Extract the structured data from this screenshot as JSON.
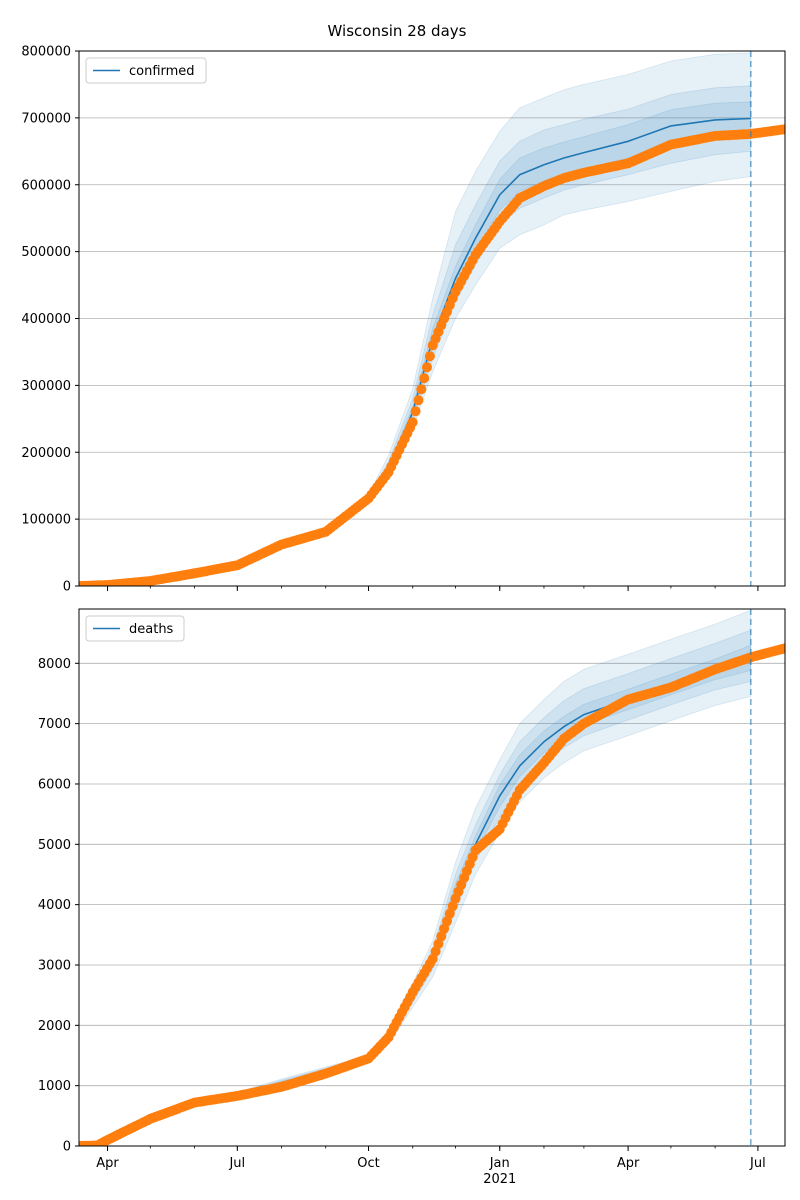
{
  "title": "Wisconsin 28 days",
  "colors": {
    "model_line": "#1f77b4",
    "observed": "#ff7f0e",
    "band": "#1f77b4",
    "grid": "#b0b0b0",
    "forecast_marker": "#1f77b4"
  },
  "x_axis": {
    "range": [
      "2020-03-12",
      "2021-07-20"
    ],
    "ticks": [
      {
        "date": "2020-04-01",
        "label": "Apr",
        "sub": ""
      },
      {
        "date": "2020-07-01",
        "label": "Jul",
        "sub": ""
      },
      {
        "date": "2020-10-01",
        "label": "Oct",
        "sub": ""
      },
      {
        "date": "2021-01-01",
        "label": "Jan",
        "sub": "2021"
      },
      {
        "date": "2021-04-01",
        "label": "Apr",
        "sub": ""
      },
      {
        "date": "2021-07-01",
        "label": "Jul",
        "sub": ""
      }
    ],
    "forecast_date": "2021-06-26"
  },
  "chart_data": [
    {
      "type": "line",
      "legend": "confirmed",
      "legend_position": "upper-left",
      "grid": true,
      "ylim": [
        0,
        800000
      ],
      "yticks": [
        "0",
        "100000",
        "200000",
        "300000",
        "400000",
        "500000",
        "600000",
        "700000",
        "800000"
      ],
      "model": {
        "x": [
          "2020-03-12",
          "2020-04-01",
          "2020-05-01",
          "2020-06-01",
          "2020-07-01",
          "2020-08-01",
          "2020-09-01",
          "2020-10-01",
          "2020-10-15",
          "2020-11-01",
          "2020-11-15",
          "2020-12-01",
          "2020-12-15",
          "2021-01-01",
          "2021-01-15",
          "2021-02-01",
          "2021-02-15",
          "2021-03-01",
          "2021-04-01",
          "2021-05-01",
          "2021-06-01",
          "2021-06-26"
        ],
        "y": [
          0,
          1500,
          8000,
          20000,
          32000,
          63000,
          82000,
          130000,
          175000,
          260000,
          370000,
          460000,
          520000,
          585000,
          615000,
          630000,
          640000,
          648000,
          665000,
          688000,
          697000,
          699000
        ],
        "bands": [
          {
            "lo": [
              0,
              1400,
              7500,
              19000,
              30000,
              60000,
              78000,
              123000,
              160000,
              235000,
              320000,
              400000,
              450000,
              505000,
              525000,
              540000,
              555000,
              562000,
              575000,
              590000,
              605000,
              612000
            ],
            "hi": [
              0,
              1600,
              8500,
              21000,
              34000,
              66000,
              86000,
              137000,
              195000,
              295000,
              430000,
              560000,
              620000,
              680000,
              715000,
              730000,
              742000,
              750000,
              765000,
              785000,
              795000,
              797000
            ]
          },
          {
            "lo": [
              0,
              1450,
              7700,
              19500,
              31000,
              61500,
              80000,
              126000,
              166000,
              245000,
              340000,
              425000,
              480000,
              540000,
              565000,
              580000,
              592000,
              600000,
              615000,
              632000,
              645000,
              650000
            ],
            "hi": [
              0,
              1550,
              8300,
              20500,
              33000,
              64500,
              84000,
              134000,
              186000,
              280000,
              405000,
              510000,
              570000,
              635000,
              665000,
              682000,
              690000,
              698000,
              713000,
              735000,
              745000,
              748000
            ]
          },
          {
            "lo": [
              0,
              1480,
              7850,
              19800,
              31500,
              62200,
              81000,
              128000,
              170000,
              252000,
              355000,
              442000,
              500000,
              562000,
              590000,
              606000,
              616000,
              624000,
              640000,
              660000,
              672000,
              674000
            ],
            "hi": [
              0,
              1520,
              8150,
              20200,
              32500,
              63800,
              83000,
              132000,
              180000,
              268000,
              385000,
              478000,
              540000,
              608000,
              640000,
              655000,
              664000,
              672000,
              690000,
              712000,
              722000,
              724000
            ]
          }
        ]
      },
      "observed": {
        "x": [
          "2020-03-12",
          "2020-04-01",
          "2020-05-01",
          "2020-06-01",
          "2020-07-01",
          "2020-08-01",
          "2020-09-01",
          "2020-10-01",
          "2020-10-15",
          "2020-11-01",
          "2020-11-15",
          "2020-12-01",
          "2020-12-15",
          "2021-01-01",
          "2021-01-15",
          "2021-02-01",
          "2021-02-15",
          "2021-03-01",
          "2021-04-01",
          "2021-05-01",
          "2021-06-01",
          "2021-06-26",
          "2021-07-20"
        ],
        "y": [
          0,
          1500,
          7500,
          19000,
          31000,
          62000,
          81000,
          131000,
          170000,
          245000,
          360000,
          440000,
          495000,
          545000,
          580000,
          598000,
          610000,
          618000,
          632000,
          660000,
          673000,
          676000,
          683000
        ]
      }
    },
    {
      "type": "line",
      "legend": "deaths",
      "legend_position": "upper-left",
      "grid": true,
      "ylim": [
        0,
        8900
      ],
      "yticks": [
        "0",
        "1000",
        "2000",
        "3000",
        "4000",
        "5000",
        "6000",
        "7000",
        "8000"
      ],
      "model": {
        "x": [
          "2020-03-12",
          "2020-03-25",
          "2020-04-01",
          "2020-05-01",
          "2020-06-01",
          "2020-07-01",
          "2020-08-01",
          "2020-09-01",
          "2020-10-01",
          "2020-10-15",
          "2020-11-01",
          "2020-11-15",
          "2020-12-01",
          "2020-12-15",
          "2021-01-01",
          "2021-01-15",
          "2021-02-01",
          "2021-02-15",
          "2021-03-01",
          "2021-04-01",
          "2021-05-01",
          "2021-06-01",
          "2021-06-26"
        ],
        "y": [
          0,
          10,
          100,
          450,
          750,
          850,
          1050,
          1250,
          1450,
          1800,
          2500,
          3100,
          4200,
          5000,
          5800,
          6300,
          6700,
          6950,
          7150,
          7400,
          7650,
          7900,
          8100
        ],
        "bands": [
          {
            "lo": [
              0,
              8,
              90,
              420,
              710,
              810,
              990,
              1190,
              1400,
              1680,
              2300,
              2800,
              3700,
              4500,
              5200,
              5700,
              6100,
              6350,
              6550,
              6800,
              7050,
              7300,
              7450
            ],
            "hi": [
              0,
              12,
              110,
              480,
              790,
              890,
              1110,
              1310,
              1500,
              1920,
              2700,
              3400,
              4700,
              5600,
              6400,
              7000,
              7400,
              7700,
              7900,
              8150,
              8400,
              8650,
              8880
            ]
          },
          {
            "lo": [
              0,
              9,
              94,
              432,
              725,
              825,
              1010,
              1210,
              1420,
              1730,
              2380,
              2930,
              3900,
              4720,
              5450,
              5950,
              6350,
              6600,
              6800,
              7060,
              7310,
              7560,
              7700
            ],
            "hi": [
              0,
              11,
              106,
              468,
              775,
              875,
              1090,
              1290,
              1480,
              1870,
              2620,
              3270,
              4500,
              5320,
              6150,
              6700,
              7100,
              7380,
              7580,
              7830,
              8080,
              8330,
              8550
            ]
          },
          {
            "lo": [
              0,
              9.5,
              97,
              441,
              738,
              838,
              1030,
              1230,
              1435,
              1770,
              2440,
              3020,
              4050,
              4860,
              5620,
              6120,
              6520,
              6780,
              6980,
              7230,
              7480,
              7730,
              7880
            ],
            "hi": [
              0,
              10.5,
              103,
              459,
              762,
              862,
              1070,
              1270,
              1465,
              1830,
              2560,
              3180,
              4350,
              5140,
              5980,
              6480,
              6880,
              7120,
              7320,
              7570,
              7820,
              8070,
              8300
            ]
          }
        ]
      },
      "observed": {
        "x": [
          "2020-03-12",
          "2020-03-25",
          "2020-04-01",
          "2020-05-01",
          "2020-06-01",
          "2020-07-01",
          "2020-08-01",
          "2020-09-01",
          "2020-10-01",
          "2020-10-15",
          "2020-11-01",
          "2020-11-15",
          "2020-12-01",
          "2020-12-15",
          "2021-01-01",
          "2021-01-15",
          "2021-02-01",
          "2021-02-15",
          "2021-03-01",
          "2021-04-01",
          "2021-05-01",
          "2021-06-01",
          "2021-06-26",
          "2021-07-20"
        ],
        "y": [
          0,
          10,
          100,
          450,
          720,
          830,
          980,
          1200,
          1450,
          1800,
          2550,
          3100,
          4100,
          4900,
          5250,
          5900,
          6350,
          6750,
          7000,
          7400,
          7600,
          7900,
          8100,
          8250
        ]
      }
    }
  ]
}
